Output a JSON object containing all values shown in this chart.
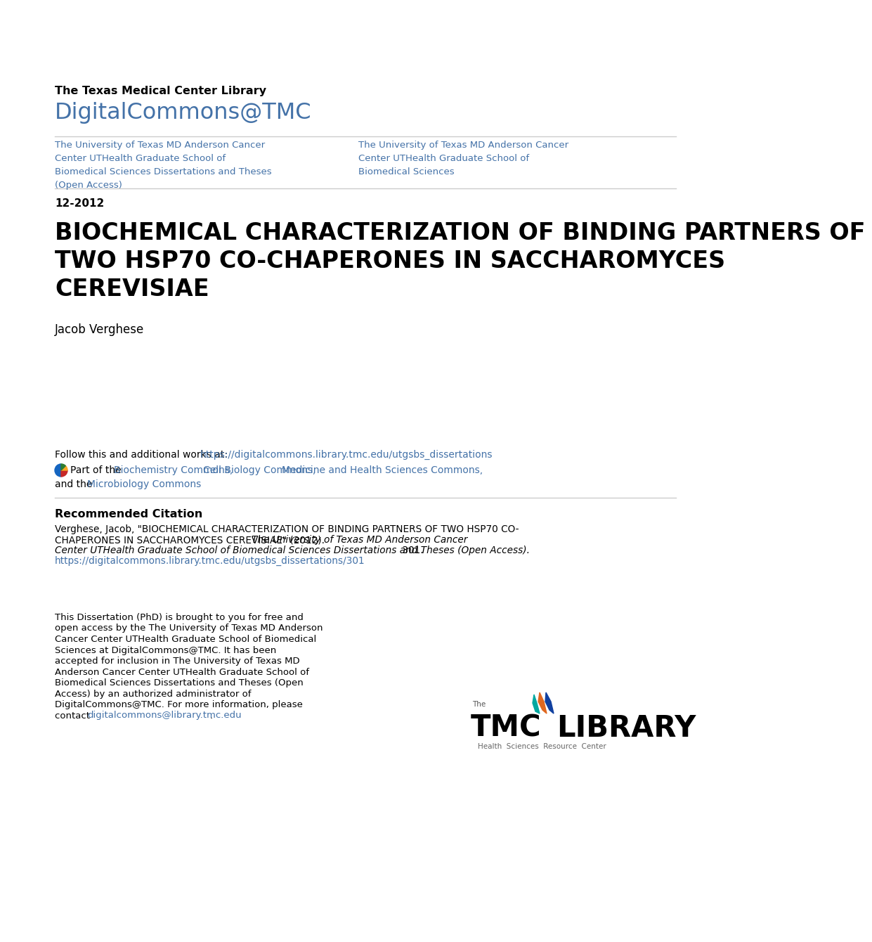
{
  "bg_color": "#ffffff",
  "link_color": "#4472a8",
  "text_color": "#000000",
  "gray_line_color": "#cccccc",
  "library_label": "The Texas Medical Center Library",
  "dc_label": "DigitalCommons@TMC",
  "left_col_text": "The University of Texas MD Anderson Cancer\nCenter UTHealth Graduate School of\nBiomedical Sciences Dissertations and Theses\n(Open Access)",
  "right_col_text": "The University of Texas MD Anderson Cancer\nCenter UTHealth Graduate School of\nBiomedical Sciences",
  "date": "12-2012",
  "title_line1": "BIOCHEMICAL CHARACTERIZATION OF BINDING PARTNERS OF",
  "title_line2": "TWO HSP70 CO-CHAPERONES IN SACCHAROMYCES",
  "title_line3": "CEREVISIAE",
  "author": "Jacob Verghese",
  "follow_prefix": "Follow this and additional works at: ",
  "follow_url": "https://digitalcommons.library.tmc.edu/utgsbs_dissertations",
  "part_prefix": "Part of the ",
  "part_link1": "Biochemistry Commons",
  "part_link2": "Cell Biology Commons",
  "part_link3": "Medicine and Health Sciences Commons",
  "part_link4": "Microbiology Commons",
  "rec_title": "Recommended Citation",
  "rec_normal1_line1": "Verghese, Jacob, \"BIOCHEMICAL CHARACTERIZATION OF BINDING PARTNERS OF TWO HSP70 CO-",
  "rec_normal1_line2": "CHAPERONES IN SACCHAROMYCES CEREVISIAE\" (2012). ",
  "rec_italic": "The University of Texas MD Anderson Cancer",
  "rec_italic2": "Center UTHealth Graduate School of Biomedical Sciences Dissertations and Theses (Open Access).",
  "rec_normal2": " 301.",
  "rec_url": "https://digitalcommons.library.tmc.edu/utgsbs_dissertations/301",
  "bottom_lines": [
    "This Dissertation (PhD) is brought to you for free and",
    "open access by the The University of Texas MD Anderson",
    "Cancer Center UTHealth Graduate School of Biomedical",
    "Sciences at DigitalCommons@TMC. It has been",
    "accepted for inclusion in The University of Texas MD",
    "Anderson Cancer Center UTHealth Graduate School of",
    "Biomedical Sciences Dissertations and Theses (Open",
    "Access) by an authorized administrator of",
    "DigitalCommons@TMC. For more information, please",
    "contact "
  ],
  "bottom_email": "digitalcommons@library.tmc.edu",
  "bottom_period": ".",
  "logo_the": "The",
  "logo_tmc": "TMC",
  "logo_library": "LIBRARY",
  "logo_subtitle": "Health  Sciences  Resource  Center"
}
